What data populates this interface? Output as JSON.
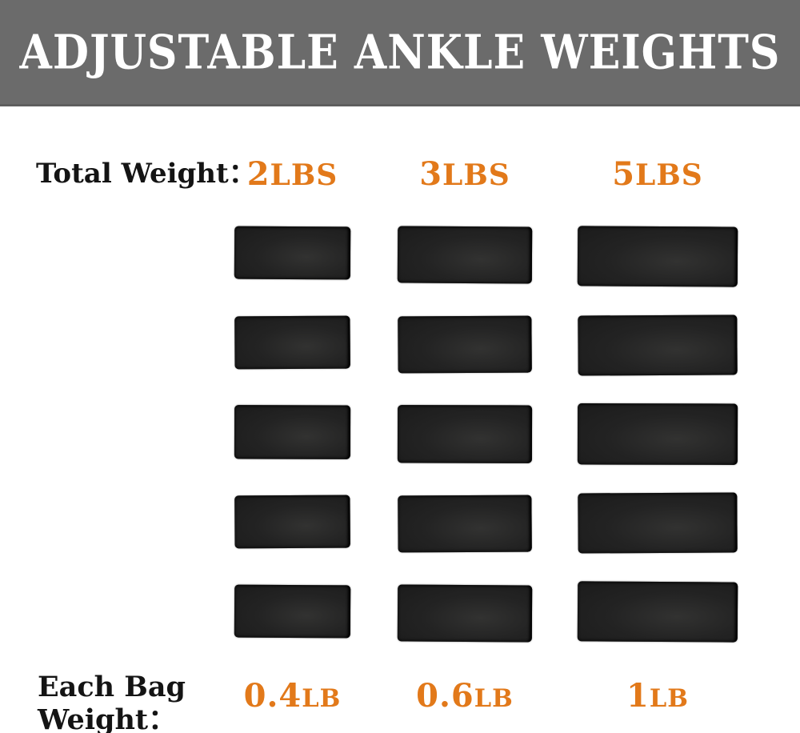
{
  "header": {
    "title": "ADJUSTABLE ANKLE WEIGHTS"
  },
  "colors": {
    "banner_gray": "#6b6b6b",
    "banner_edge": "#5e5e5e",
    "title_white": "#ffffff",
    "text_black": "#141414",
    "accent_orange": "#e2791a",
    "bag_dark": "#232323",
    "page_bg": "#ffffff"
  },
  "comparison": {
    "total_weight_label": "Total Weight：",
    "each_bag_label_line1": "Each Bag",
    "each_bag_label_line2": "Weight：",
    "bags_per_column": 5,
    "columns": [
      {
        "id": "2lbs",
        "total": {
          "num": "2",
          "unit": "LBS"
        },
        "each": {
          "num": "0.4",
          "unit": "LB"
        }
      },
      {
        "id": "3lbs",
        "total": {
          "num": "3",
          "unit": "LBS"
        },
        "each": {
          "num": "0.6",
          "unit": "LB"
        }
      },
      {
        "id": "5lbs",
        "total": {
          "num": "5",
          "unit": "LBS"
        },
        "each": {
          "num": "1",
          "unit": "LB"
        }
      }
    ]
  }
}
